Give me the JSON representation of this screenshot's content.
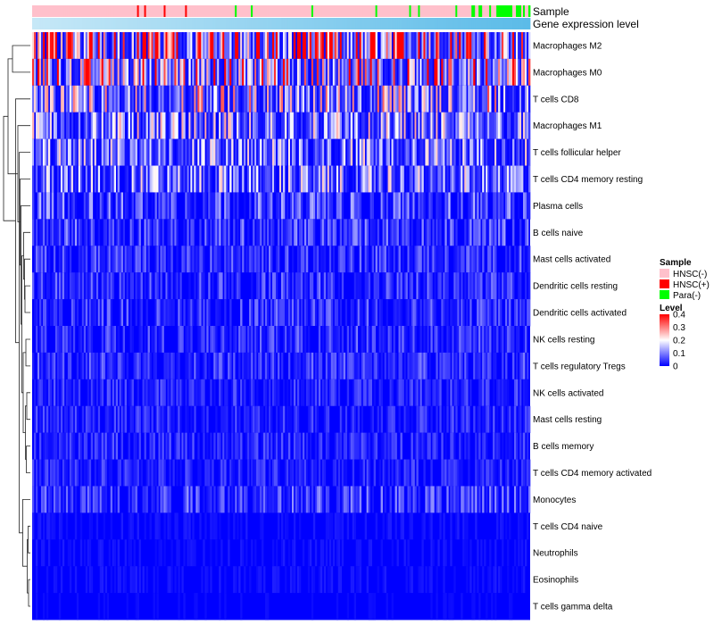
{
  "chart_data": {
    "type": "heatmap",
    "title": "",
    "column_annotations": [
      {
        "name": "Sample"
      },
      {
        "name": "Gene expression level"
      }
    ],
    "rows": [
      {
        "label": "Macrophages M2",
        "mean": 0.26
      },
      {
        "label": "Macrophages M0",
        "mean": 0.2
      },
      {
        "label": "T cells CD8",
        "mean": 0.14
      },
      {
        "label": "Macrophages M1",
        "mean": 0.11
      },
      {
        "label": "T cells follicular helper",
        "mean": 0.1
      },
      {
        "label": "T cells CD4 memory resting",
        "mean": 0.1
      },
      {
        "label": "Plasma cells",
        "mean": 0.06
      },
      {
        "label": "B cells naive",
        "mean": 0.05
      },
      {
        "label": "Mast cells activated",
        "mean": 0.04
      },
      {
        "label": "Dendritic cells resting",
        "mean": 0.04
      },
      {
        "label": "Dendritic cells activated",
        "mean": 0.04
      },
      {
        "label": "NK cells resting",
        "mean": 0.04
      },
      {
        "label": "T cells regulatory  Tregs",
        "mean": 0.04
      },
      {
        "label": "NK cells activated",
        "mean": 0.03
      },
      {
        "label": "Mast cells resting",
        "mean": 0.03
      },
      {
        "label": "B cells memory",
        "mean": 0.03
      },
      {
        "label": "T cells CD4 memory activated",
        "mean": 0.03
      },
      {
        "label": "Monocytes",
        "mean": 0.05
      },
      {
        "label": "T cells CD4 naive",
        "mean": 0.01
      },
      {
        "label": "Neutrophils",
        "mean": 0.01
      },
      {
        "label": "Eosinophils",
        "mean": 0.01
      },
      {
        "label": "T cells gamma delta",
        "mean": 0.005
      }
    ],
    "dendrogram_merges": [
      [
        20,
        21,
        0.02
      ],
      [
        18,
        19,
        0.025
      ],
      [
        -2,
        -1,
        0.035
      ],
      [
        13,
        14,
        0.04
      ],
      [
        15,
        16,
        0.045
      ],
      [
        11,
        12,
        0.05
      ],
      [
        -4,
        -5,
        0.055
      ],
      [
        9,
        10,
        0.06
      ],
      [
        8,
        -8,
        0.065
      ],
      [
        7,
        -9,
        0.075
      ],
      [
        -7,
        -6,
        0.08
      ],
      [
        17,
        -3,
        0.085
      ],
      [
        -10,
        -11,
        0.095
      ],
      [
        6,
        -13,
        0.105
      ],
      [
        5,
        -14,
        0.115
      ],
      [
        4,
        -12,
        0.125
      ],
      [
        3,
        -15,
        0.14
      ],
      [
        2,
        -16,
        0.165
      ],
      [
        0,
        1,
        0.2
      ],
      [
        -19,
        -17,
        0.25
      ],
      [
        -20,
        -18,
        0.3
      ]
    ],
    "legend": {
      "sample_title": "Sample",
      "sample_levels": [
        {
          "label": "HNSC(-)",
          "color": "#ffc0cb"
        },
        {
          "label": "HNSC(+)",
          "color": "#ff0000"
        },
        {
          "label": "Para(-)",
          "color": "#00ff00"
        }
      ],
      "level_title": "Level",
      "level_ticks": [
        0.4,
        0.3,
        0.2,
        0.1,
        0
      ],
      "level_range": [
        0,
        0.4
      ],
      "level_colors": [
        "#0000ff",
        "#ffffff",
        "#ff0000"
      ]
    },
    "gene_expression_colors": [
      "#c6e8f7",
      "#5bbbe8"
    ]
  }
}
